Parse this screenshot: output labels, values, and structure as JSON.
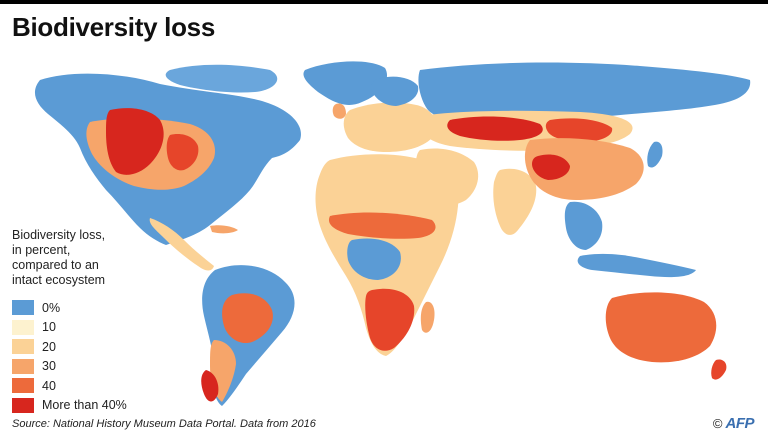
{
  "title": "Biodiversity loss",
  "legend": {
    "title_lines": [
      "Biodiversity loss,",
      "in percent,",
      "compared to an",
      "intact ecosystem"
    ],
    "items": [
      {
        "label": "0%",
        "color": "#5b9bd5"
      },
      {
        "label": "10",
        "color": "#fdf2cf"
      },
      {
        "label": "20",
        "color": "#fbd296"
      },
      {
        "label": "30",
        "color": "#f6a56a"
      },
      {
        "label": "40",
        "color": "#ed6a3b"
      },
      {
        "label": "More than 40%",
        "color": "#d7261e"
      }
    ]
  },
  "source": "Source: National History Museum Data Portal. Data from 2016",
  "credit": {
    "copyright": "©",
    "agency": "AFP"
  }
}
